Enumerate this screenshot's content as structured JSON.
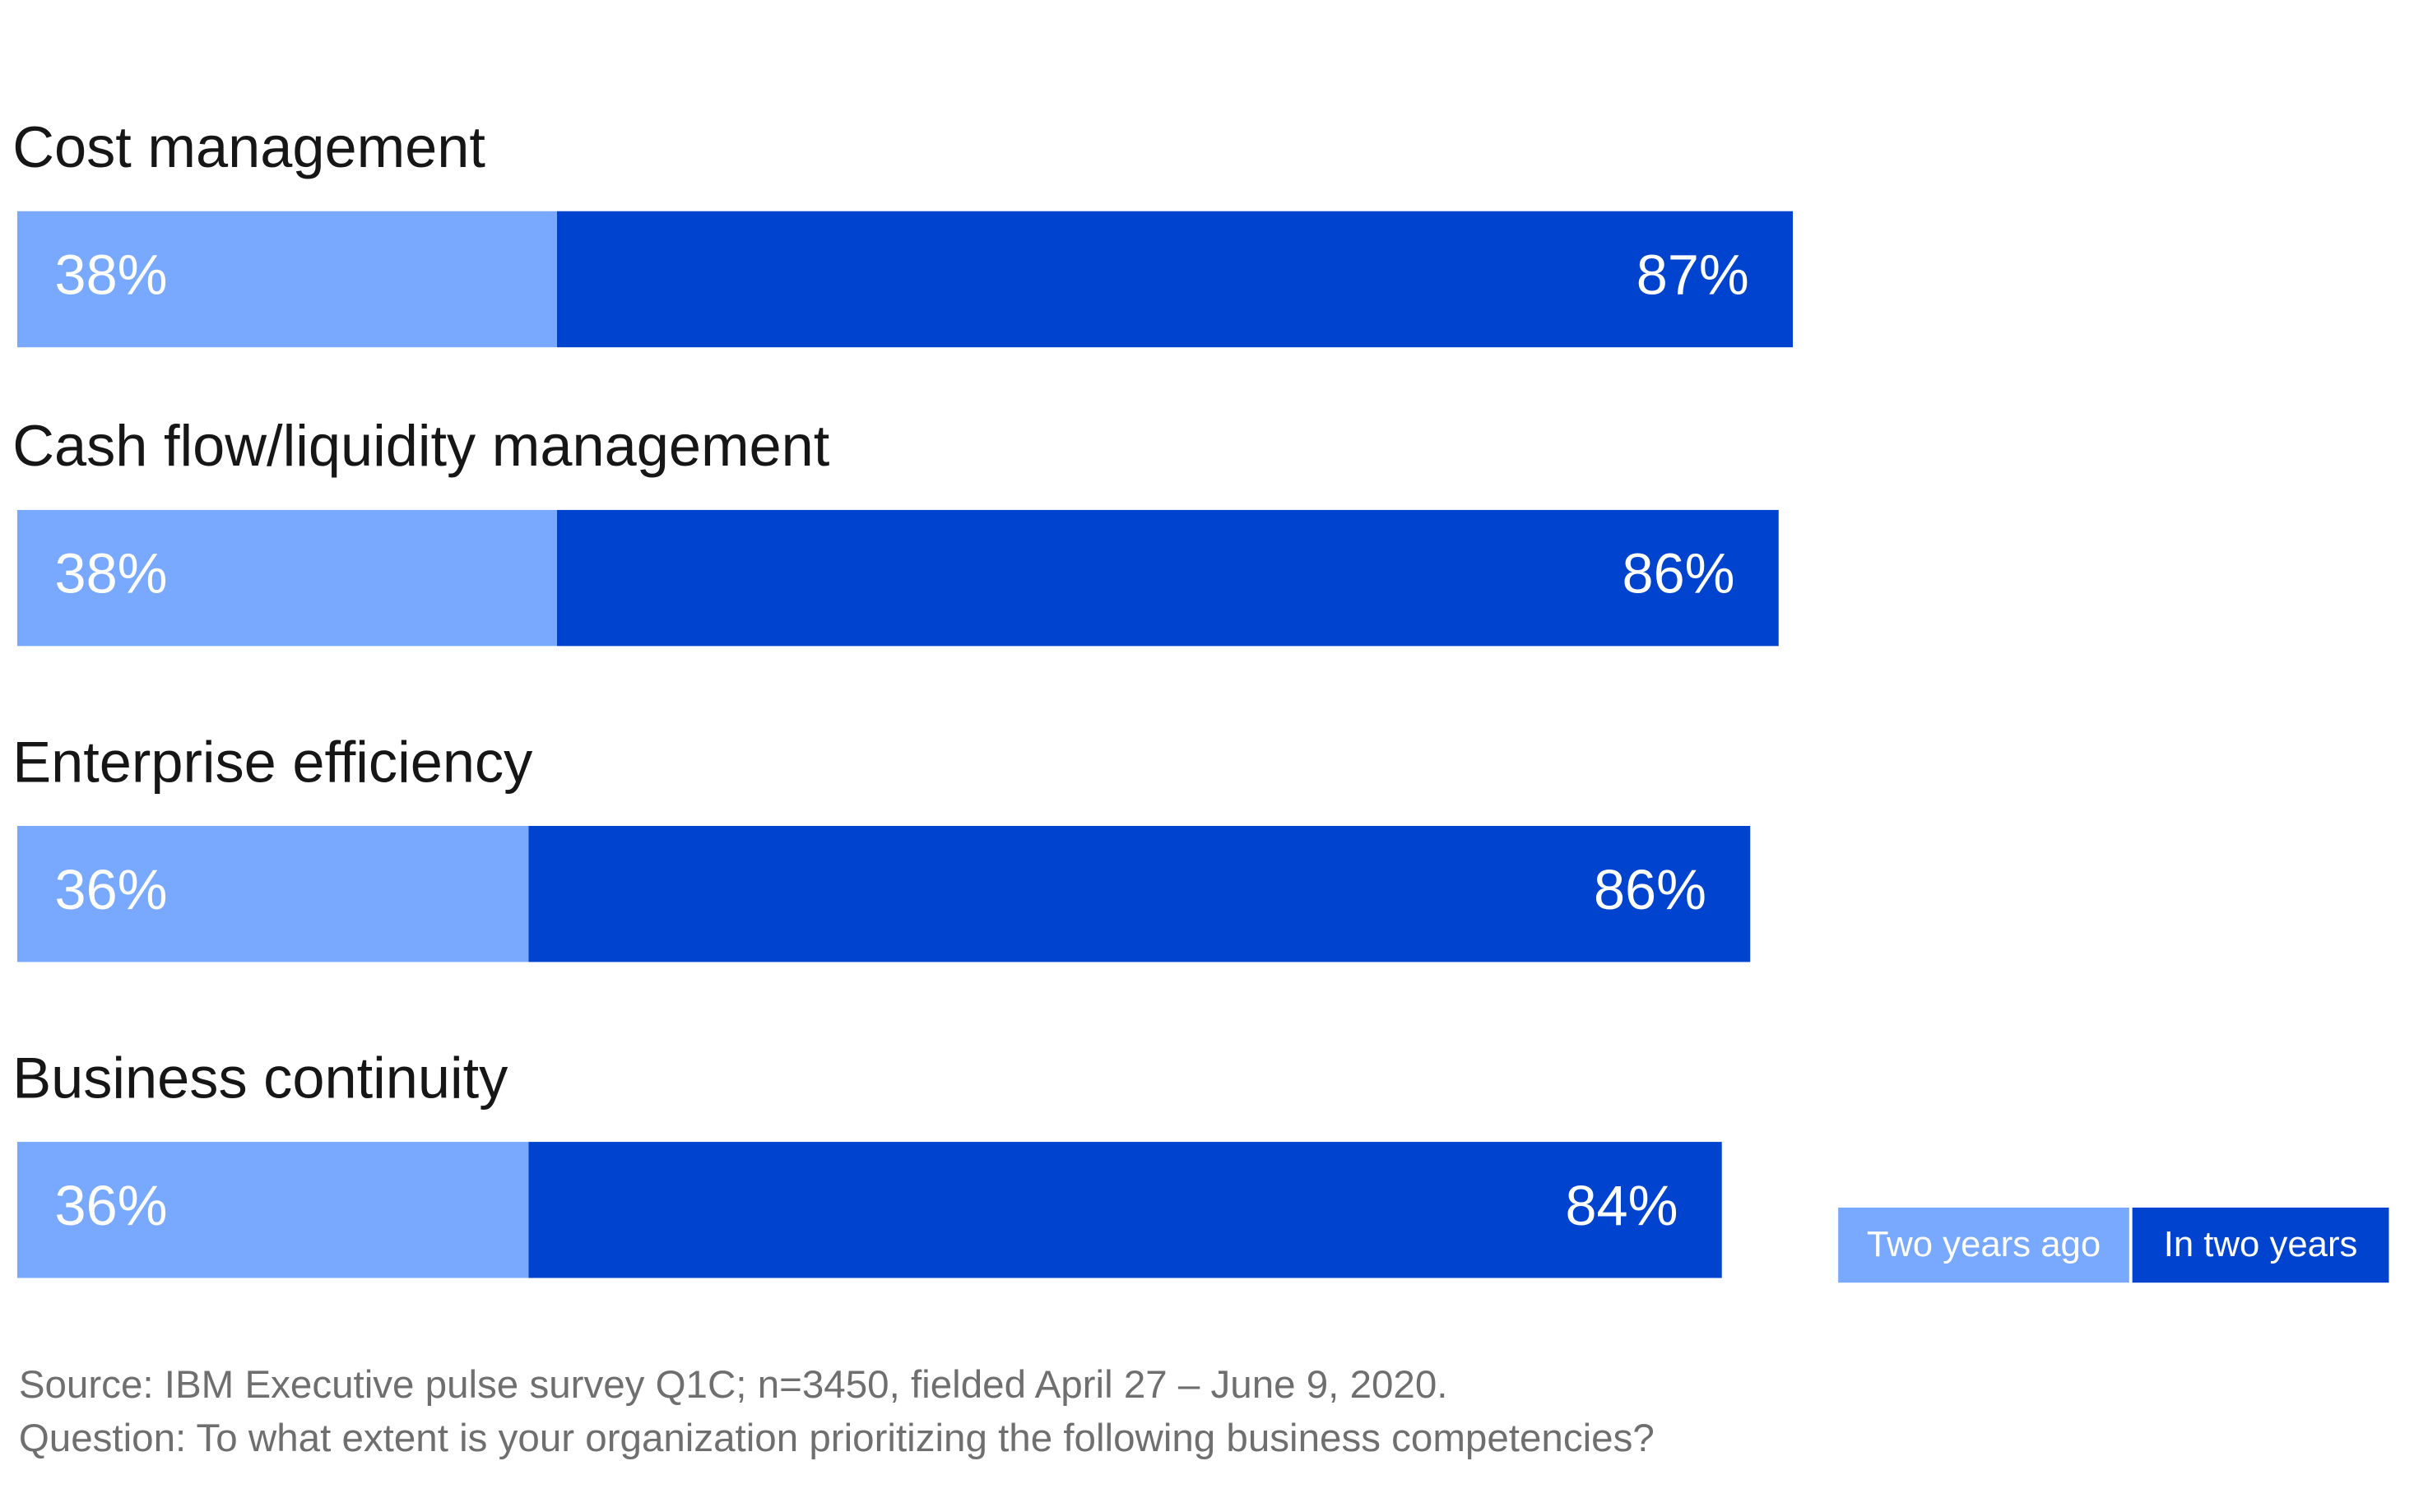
{
  "chart_data": {
    "type": "stacked-bar-horizontal",
    "categories": [
      "Cost management",
      "Cash flow/liquidity management",
      "Enterprise efficiency",
      "Business continuity"
    ],
    "series": [
      {
        "name": "Two years ago",
        "color": "#78a9ff",
        "values": [
          38,
          38,
          36,
          36
        ],
        "value_labels": [
          "38%",
          "38%",
          "36%",
          "36%"
        ]
      },
      {
        "name": "In two years",
        "color": "#0043ce",
        "values": [
          87,
          86,
          86,
          84
        ],
        "value_labels": [
          "87%",
          "86%",
          "86%",
          "84%"
        ]
      }
    ],
    "source": [
      "Source: IBM Executive pulse survey Q1C; n=3450, fielded April 27 – June 9, 2020.",
      "Question: To what extent is your organization prioritizing the following business competencies?"
    ]
  }
}
